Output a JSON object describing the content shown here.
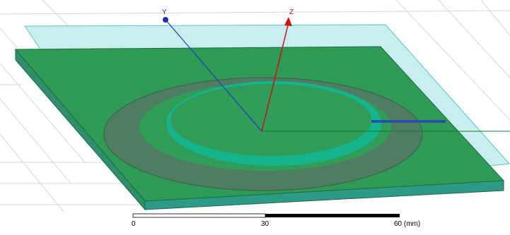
{
  "axes": {
    "y": "Y",
    "z": "Z"
  },
  "scale_bar": {
    "labels": [
      "0",
      "30",
      "60 (mm)"
    ]
  }
}
